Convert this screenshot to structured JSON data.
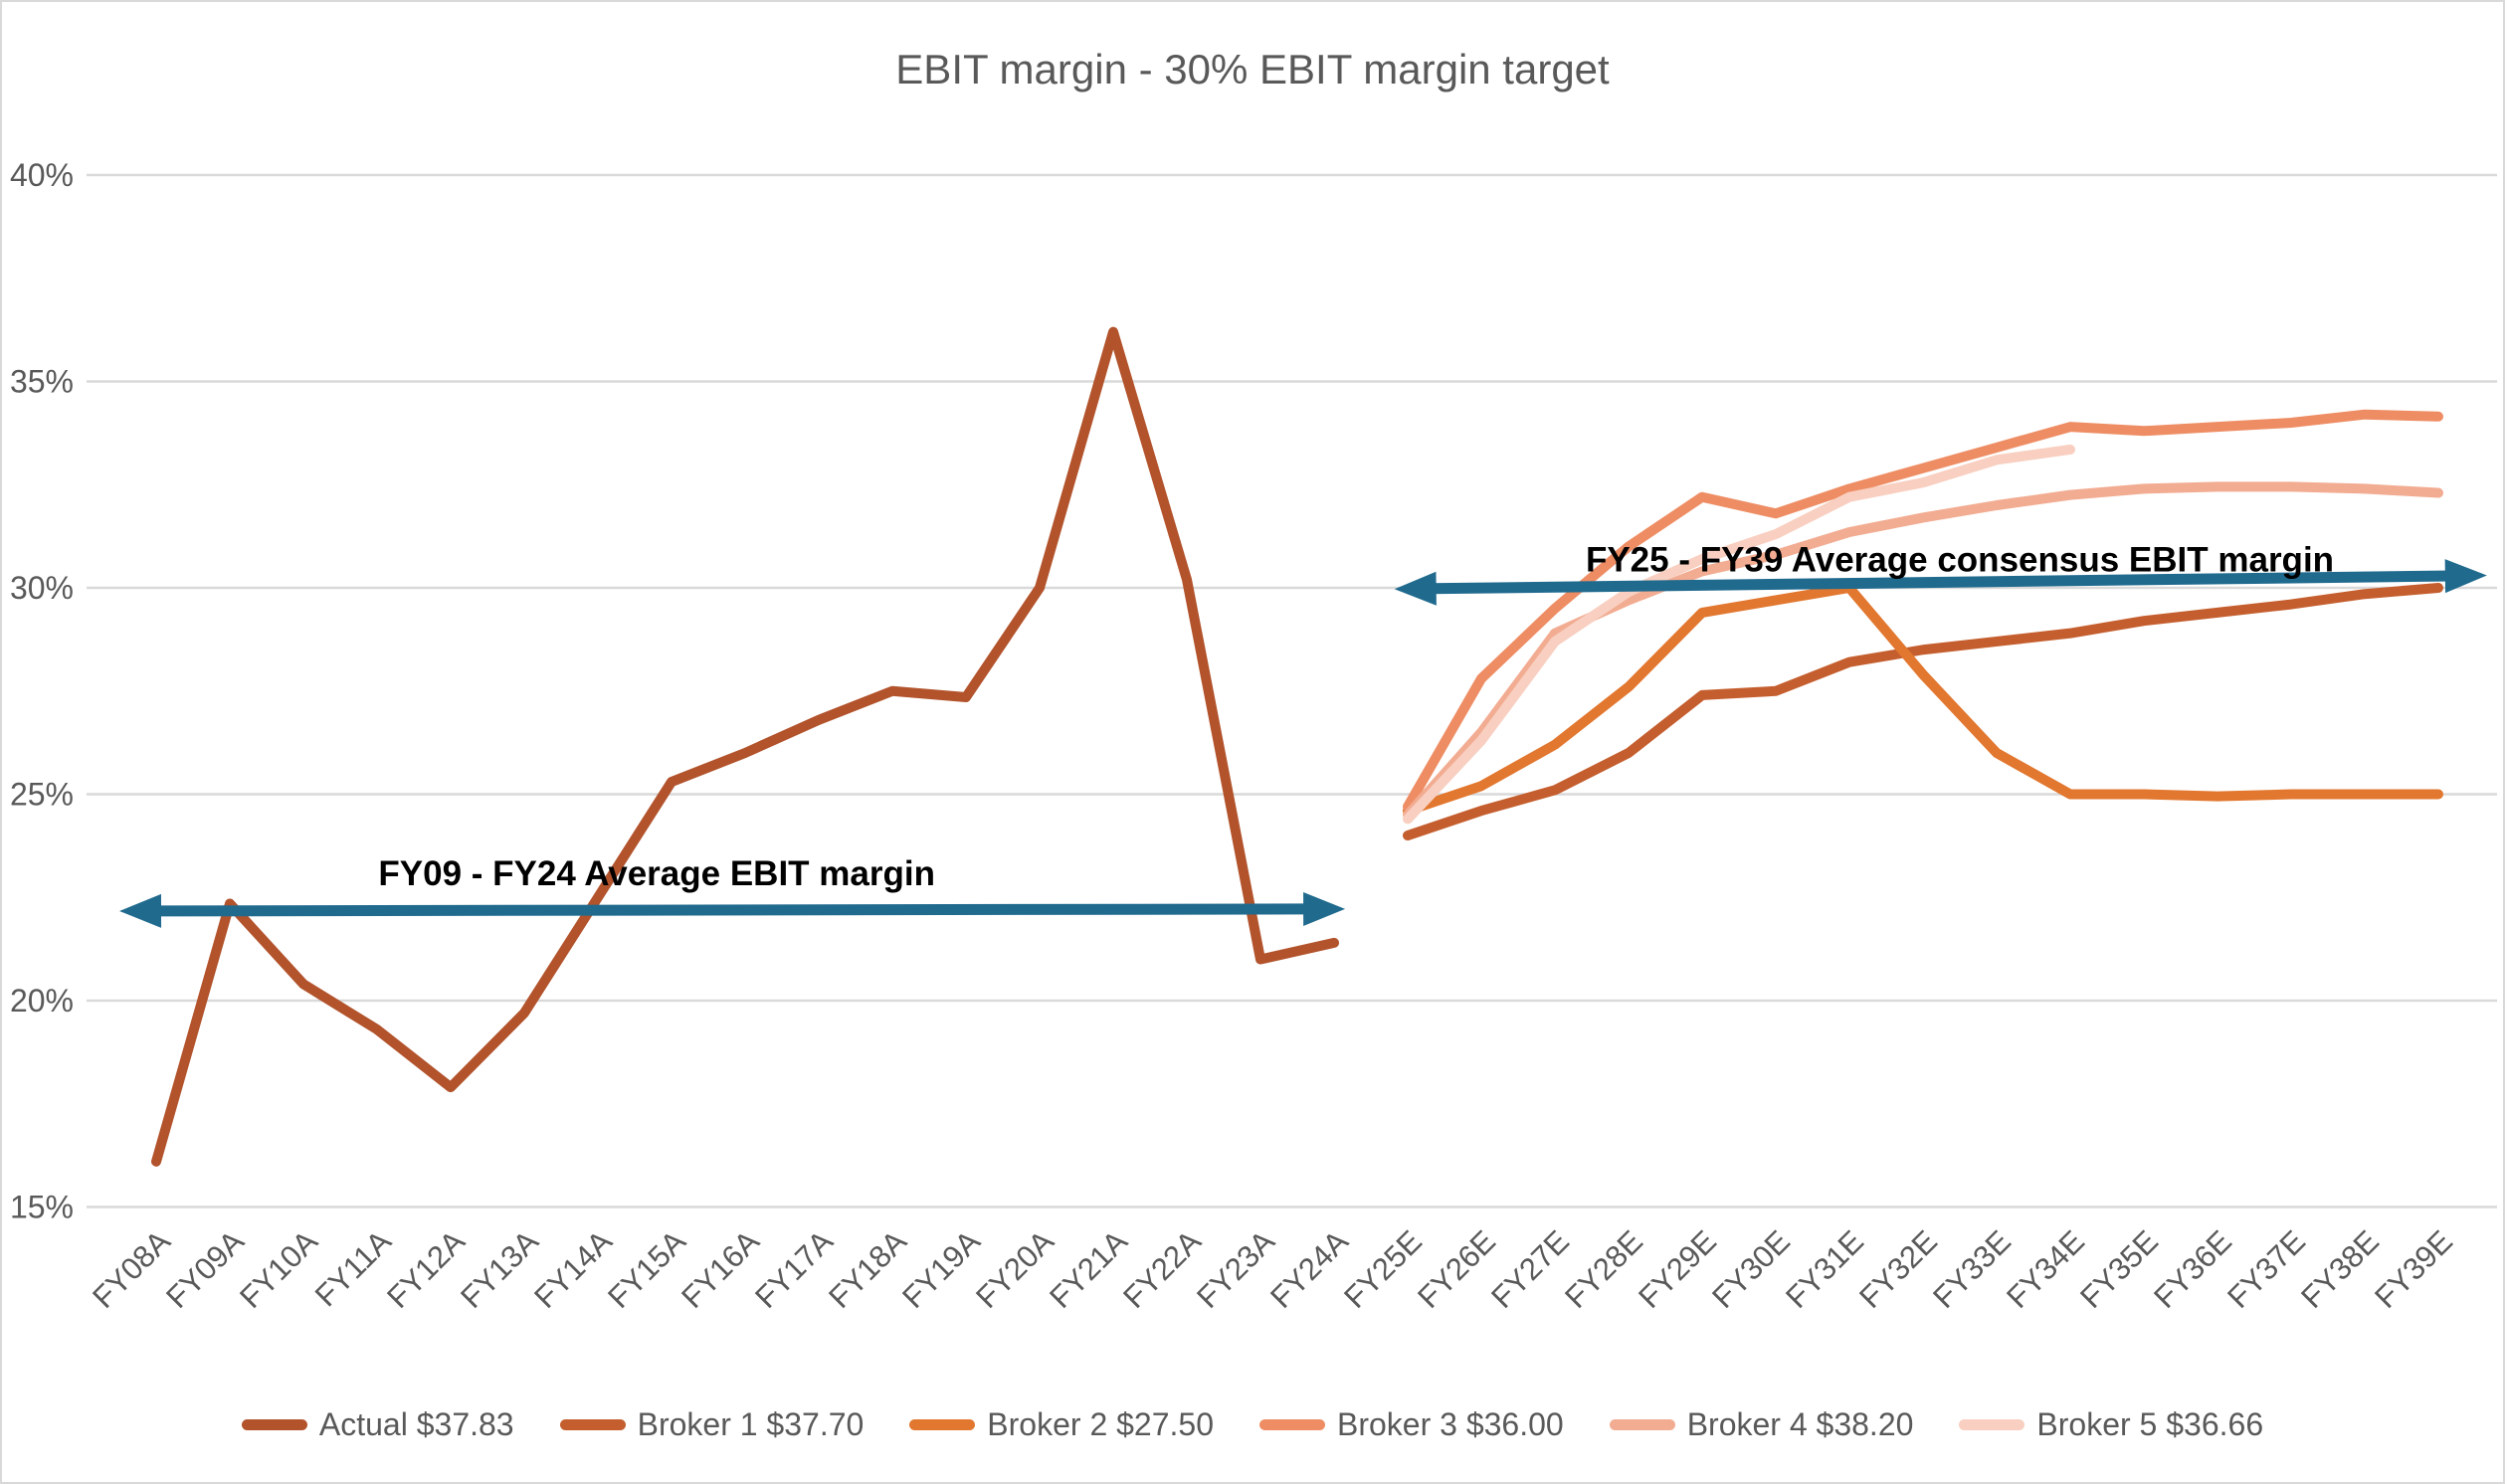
{
  "chart_data": {
    "type": "line",
    "title": "EBIT margin - 30% EBIT margin target",
    "xlabel": "",
    "ylabel": "",
    "grid": "horizontal",
    "legend_position": "bottom",
    "ylim": [
      15,
      40
    ],
    "y_axis": {
      "ticks": [
        {
          "value": 40,
          "label": "40%"
        },
        {
          "value": 35,
          "label": "35%"
        },
        {
          "value": 30,
          "label": "30%"
        },
        {
          "value": 25,
          "label": "25%"
        },
        {
          "value": 20,
          "label": "20%"
        },
        {
          "value": 15,
          "label": "15%"
        }
      ]
    },
    "categories": [
      "FY08A",
      "FY09A",
      "FY10A",
      "FY11A",
      "FY12A",
      "FY13A",
      "FY14A",
      "FY15A",
      "FY16A",
      "FY17A",
      "FY18A",
      "FY19A",
      "FY20A",
      "FY21A",
      "FY22A",
      "FY23A",
      "FY24A",
      "FY25E",
      "FY26E",
      "FY27E",
      "FY28E",
      "FY29E",
      "FY30E",
      "FY31E",
      "FY32E",
      "FY33E",
      "FY34E",
      "FY35E",
      "FY36E",
      "FY37E",
      "FY38E",
      "FY39E"
    ],
    "series": [
      {
        "name": "Actual $37.83",
        "color": "#B2532C",
        "values": [
          16.1,
          22.35,
          20.4,
          19.3,
          17.9,
          19.7,
          22.5,
          25.3,
          26.0,
          26.8,
          27.5,
          27.35,
          30.0,
          36.2,
          30.2,
          21.0,
          21.4,
          null,
          null,
          null,
          null,
          null,
          null,
          null,
          null,
          null,
          null,
          null,
          null,
          null,
          null,
          null
        ]
      },
      {
        "name": "Broker 1 $37.70",
        "color": "#C55E2E",
        "values": [
          null,
          null,
          null,
          null,
          null,
          null,
          null,
          null,
          null,
          null,
          null,
          null,
          null,
          null,
          null,
          null,
          null,
          24.0,
          24.6,
          25.1,
          26.0,
          27.4,
          27.5,
          28.2,
          28.5,
          28.7,
          28.9,
          29.2,
          29.4,
          29.6,
          29.85,
          30.0
        ]
      },
      {
        "name": "Broker 2 $27.50",
        "color": "#E2772F",
        "values": [
          null,
          null,
          null,
          null,
          null,
          null,
          null,
          null,
          null,
          null,
          null,
          null,
          null,
          null,
          null,
          null,
          null,
          24.6,
          25.2,
          26.2,
          27.6,
          29.4,
          29.7,
          30.0,
          27.9,
          26.0,
          25.0,
          25.0,
          24.95,
          25.0,
          25.0,
          25.0
        ]
      },
      {
        "name": "Broker 3 $36.00",
        "color": "#EE8D64",
        "values": [
          null,
          null,
          null,
          null,
          null,
          null,
          null,
          null,
          null,
          null,
          null,
          null,
          null,
          null,
          null,
          null,
          null,
          24.7,
          27.8,
          29.5,
          31.0,
          32.2,
          31.8,
          32.4,
          32.9,
          33.4,
          33.9,
          33.8,
          33.9,
          34.0,
          34.2,
          34.15
        ]
      },
      {
        "name": "Broker 4 $38.20",
        "color": "#F2AC92",
        "values": [
          null,
          null,
          null,
          null,
          null,
          null,
          null,
          null,
          null,
          null,
          null,
          null,
          null,
          null,
          null,
          null,
          null,
          24.5,
          26.5,
          28.9,
          29.7,
          30.4,
          30.8,
          31.35,
          31.7,
          32.0,
          32.25,
          32.4,
          32.45,
          32.45,
          32.4,
          32.3
        ]
      },
      {
        "name": "Broker 5 $36.66",
        "color": "#F8CFC0",
        "values": [
          null,
          null,
          null,
          null,
          null,
          null,
          null,
          null,
          null,
          null,
          null,
          null,
          null,
          null,
          null,
          null,
          null,
          24.4,
          26.3,
          28.7,
          29.9,
          30.7,
          31.3,
          32.2,
          32.55,
          33.1,
          33.35,
          null,
          null,
          null,
          null,
          null
        ]
      }
    ],
    "annotations": [
      {
        "text": "FY09 - FY24 Average EBIT margin",
        "text_anchor_cat_index": 6.8,
        "text_pct": 22.8,
        "arrow": {
          "from_cat_index": -0.5,
          "to_cat_index": 16.15,
          "pct_start": 22.17,
          "pct_end": 22.22
        }
      },
      {
        "text": "FY25 - FY39 Average consensus EBIT margin",
        "text_anchor_cat_index": 24.5,
        "text_pct": 30.4,
        "arrow": {
          "from_cat_index": 16.82,
          "to_cat_index": 31.66,
          "pct_start": 29.97,
          "pct_end": 30.3
        }
      }
    ],
    "annotation_arrow_color": "#206A8E",
    "gridline_color": "#D9D9D9",
    "axis_text_color": "#595959",
    "annotation_text_color": "#000000"
  },
  "legend": {
    "items": [
      {
        "label": "Actual $37.83",
        "color": "#B2532C"
      },
      {
        "label": "Broker 1 $37.70",
        "color": "#C55E2E"
      },
      {
        "label": "Broker 2 $27.50",
        "color": "#E2772F"
      },
      {
        "label": "Broker 3 $36.00",
        "color": "#EE8D64"
      },
      {
        "label": "Broker 4 $38.20",
        "color": "#F2AC92"
      },
      {
        "label": "Broker 5 $36.66",
        "color": "#F8CFC0"
      }
    ]
  }
}
